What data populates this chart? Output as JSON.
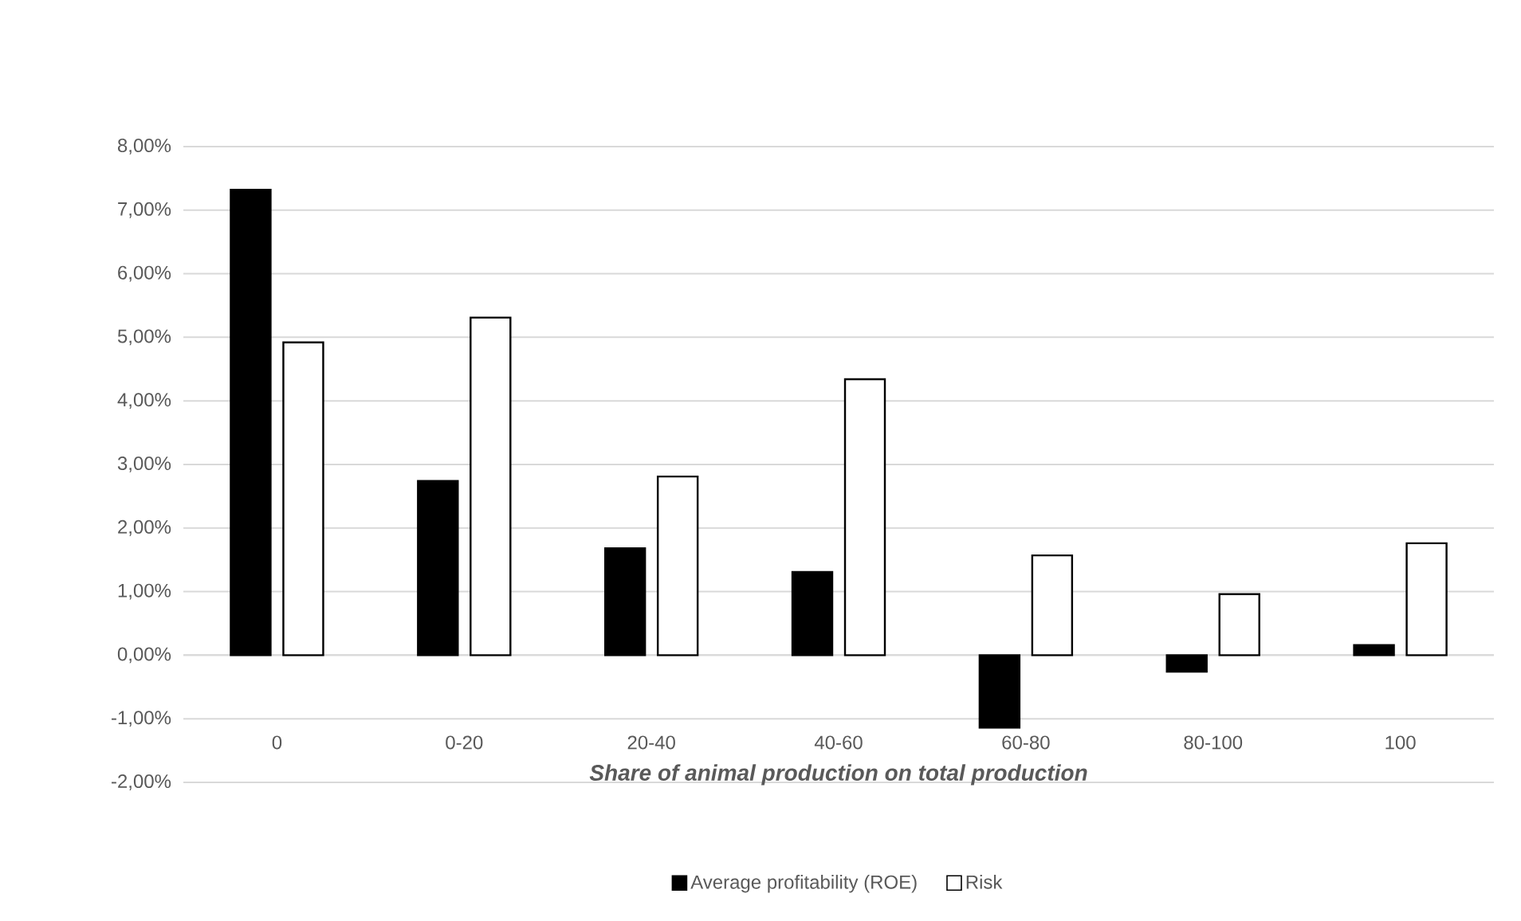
{
  "chart_data": {
    "type": "bar",
    "xlabel": "*Share of animal production on total production*",
    "categories": [
      "0",
      "0-20",
      "20-40",
      "40-60",
      "60-80",
      "80-100",
      "100"
    ],
    "series": [
      {
        "name": "Average profitability (ROE)",
        "color": "#000000",
        "values": [
          7.32,
          2.74,
          1.68,
          1.31,
          -1.14,
          -0.26,
          0.16
        ]
      },
      {
        "name": "Risk",
        "color": "#ffffff",
        "values": [
          4.92,
          5.31,
          2.81,
          4.34,
          1.57,
          0.96,
          1.76
        ]
      }
    ],
    "ylim": [
      -2,
      8
    ],
    "yticks": [
      {
        "value": -2,
        "label": "-2,00%"
      },
      {
        "value": -1,
        "label": "-1,00%"
      },
      {
        "value": 0,
        "label": "0,00%"
      },
      {
        "value": 1,
        "label": "1,00%"
      },
      {
        "value": 2,
        "label": "2,00%"
      },
      {
        "value": 3,
        "label": "3,00%"
      },
      {
        "value": 4,
        "label": "4,00%"
      },
      {
        "value": 5,
        "label": "5,00%"
      },
      {
        "value": 6,
        "label": "6,00%"
      },
      {
        "value": 7,
        "label": "7,00%"
      },
      {
        "value": 8,
        "label": "8,00%"
      }
    ],
    "grid": "y",
    "legend": "bottom"
  }
}
